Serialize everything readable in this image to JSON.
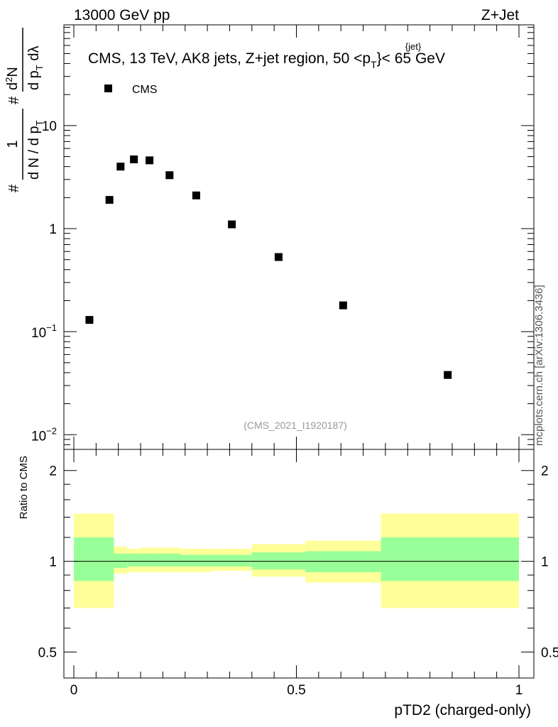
{
  "header": {
    "left": "13000 GeV pp",
    "right": "Z+Jet"
  },
  "main_title": {
    "prefix": "CMS, 13 TeV, AK8 jets, Z+jet region, 50 <p",
    "sup": "{jet}",
    "sub": "T",
    "suffix": "}< 65 GeV"
  },
  "legend": {
    "label": "CMS",
    "placement": "top-left"
  },
  "watermark": "(CMS_2021_I1920187)",
  "side_label": "mcplots.cern.ch [arXiv:1306.3436]",
  "ylabel_upper": {
    "hash1": "#",
    "numerator_one": "1",
    "denominator": "d N / d p",
    "denominator_sub": "T",
    "hash2": "#",
    "frac2_num": "d",
    "frac2_num_sup": "2",
    "frac2_num_after": "N",
    "frac2_den": "d p",
    "frac2_den_sub": "T",
    "frac2_den_after": " dλ"
  },
  "ylabel_lower": "Ratio to CMS",
  "xlabel": "pTD2 (charged-only)",
  "colors": {
    "band_outer": "#ffff99",
    "band_inner": "#99ff99",
    "marker": "#000000",
    "line": "#000000"
  },
  "chart_data": {
    "type": "scatter",
    "title": "CMS, 13 TeV, AK8 jets, Z+jet region, 50 <p_T^{jet}}< 65 GeV",
    "xlabel": "pTD2 (charged-only)",
    "ylabel": "1/(dN/dpT) d²N/(dpT dλ)",
    "x_ticks": [
      {
        "value": 0,
        "label": "0"
      },
      {
        "value": 0.5,
        "label": "0.5"
      },
      {
        "value": 1,
        "label": "1"
      }
    ],
    "upper": {
      "yscale": "log",
      "ylim": [
        0.0072,
        95
      ],
      "y_ticks": [
        {
          "value": 0.01,
          "base": "10",
          "exp": "−2"
        },
        {
          "value": 0.1,
          "base": "10",
          "exp": "−1"
        },
        {
          "value": 1,
          "label": "1"
        },
        {
          "value": 10,
          "label": "10"
        }
      ],
      "series": [
        {
          "name": "CMS",
          "x": [
            0.035,
            0.08,
            0.105,
            0.135,
            0.17,
            0.215,
            0.275,
            0.355,
            0.46,
            0.605,
            0.84
          ],
          "y": [
            0.13,
            1.9,
            4.0,
            4.7,
            4.6,
            3.3,
            2.1,
            1.1,
            0.53,
            0.18,
            0.038
          ]
        }
      ]
    },
    "lower": {
      "yscale": "log",
      "ylim": [
        0.41,
        2.35
      ],
      "ylabel": "Ratio to CMS",
      "y_ticks": [
        {
          "value": 0.5,
          "label": "0.5"
        },
        {
          "value": 1,
          "label": "1"
        },
        {
          "value": 2,
          "label": "2"
        }
      ],
      "reference_line": 1,
      "bands": [
        {
          "x0": 0.0,
          "x1": 0.09,
          "inner": [
            0.86,
            1.2
          ],
          "outer": [
            0.7,
            1.44
          ]
        },
        {
          "x0": 0.09,
          "x1": 0.12,
          "inner": [
            0.95,
            1.06
          ],
          "outer": [
            0.91,
            1.12
          ]
        },
        {
          "x0": 0.12,
          "x1": 0.15,
          "inner": [
            0.96,
            1.06
          ],
          "outer": [
            0.92,
            1.1
          ]
        },
        {
          "x0": 0.15,
          "x1": 0.19,
          "inner": [
            0.96,
            1.06
          ],
          "outer": [
            0.92,
            1.11
          ]
        },
        {
          "x0": 0.19,
          "x1": 0.24,
          "inner": [
            0.96,
            1.06
          ],
          "outer": [
            0.92,
            1.11
          ]
        },
        {
          "x0": 0.24,
          "x1": 0.31,
          "inner": [
            0.96,
            1.05
          ],
          "outer": [
            0.92,
            1.1
          ]
        },
        {
          "x0": 0.31,
          "x1": 0.4,
          "inner": [
            0.96,
            1.05
          ],
          "outer": [
            0.93,
            1.1
          ]
        },
        {
          "x0": 0.4,
          "x1": 0.52,
          "inner": [
            0.94,
            1.07
          ],
          "outer": [
            0.89,
            1.14
          ]
        },
        {
          "x0": 0.52,
          "x1": 0.69,
          "inner": [
            0.92,
            1.08
          ],
          "outer": [
            0.85,
            1.17
          ]
        },
        {
          "x0": 0.69,
          "x1": 1.0,
          "inner": [
            0.86,
            1.2
          ],
          "outer": [
            0.7,
            1.44
          ]
        }
      ]
    },
    "grid": false
  }
}
